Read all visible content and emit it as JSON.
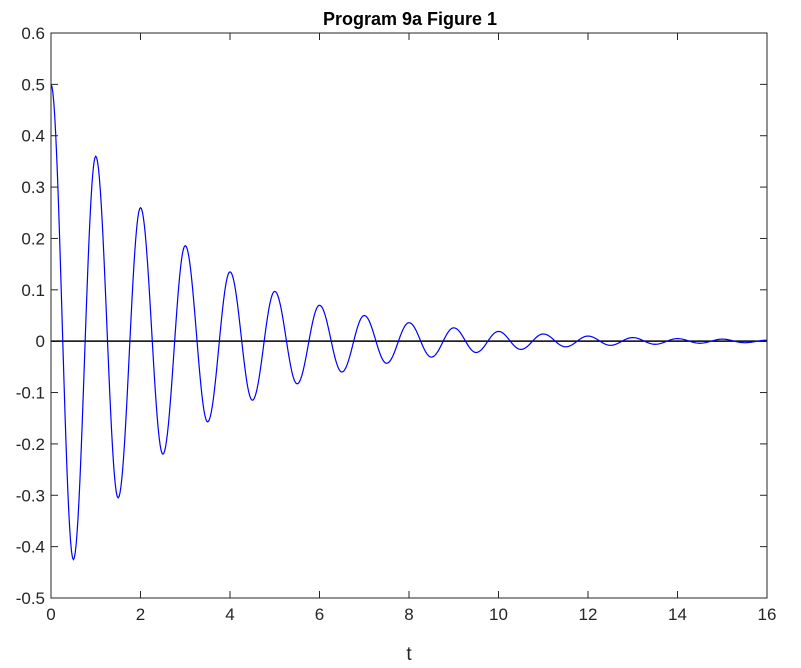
{
  "chart_data": {
    "type": "line",
    "title": "Program 9a Figure 1",
    "xlabel": "t",
    "ylabel": "",
    "xlim": [
      0,
      16
    ],
    "ylim": [
      -0.5,
      0.6
    ],
    "xticks": [
      "0",
      "2",
      "4",
      "6",
      "8",
      "10",
      "12",
      "14",
      "16"
    ],
    "yticks": [
      "0.6",
      "0.5",
      "0.4",
      "0.3",
      "0.2",
      "0.1",
      "0",
      "-0.1",
      "-0.2",
      "-0.3",
      "-0.4",
      "-0.5"
    ],
    "grid": false,
    "legend": "none",
    "reference_line": {
      "y": 0,
      "color": "#000000"
    },
    "series": [
      {
        "color": "#0000ff",
        "x": [
          0,
          0.5,
          1.0,
          1.5,
          2.0,
          2.5,
          3.0,
          3.5,
          4.0,
          4.5,
          5.0,
          5.5,
          6.0,
          6.5,
          7.0,
          7.5,
          8.0,
          8.5,
          9.0,
          9.5,
          10.0,
          10.5,
          11.0,
          11.5,
          12.0,
          12.5,
          13.0,
          13.5,
          14.0,
          14.5,
          15.0,
          15.5,
          16.0
        ],
        "values": [
          0.5,
          -0.425,
          0.36,
          -0.305,
          0.26,
          -0.22,
          0.186,
          -0.157,
          0.135,
          -0.115,
          0.097,
          -0.083,
          0.07,
          -0.06,
          0.05,
          -0.043,
          0.036,
          -0.031,
          0.026,
          -0.022,
          0.019,
          -0.016,
          0.014,
          -0.011,
          0.01,
          -0.008,
          0.007,
          -0.006,
          0.005,
          -0.004,
          0.004,
          -0.003,
          0.002
        ]
      }
    ]
  }
}
